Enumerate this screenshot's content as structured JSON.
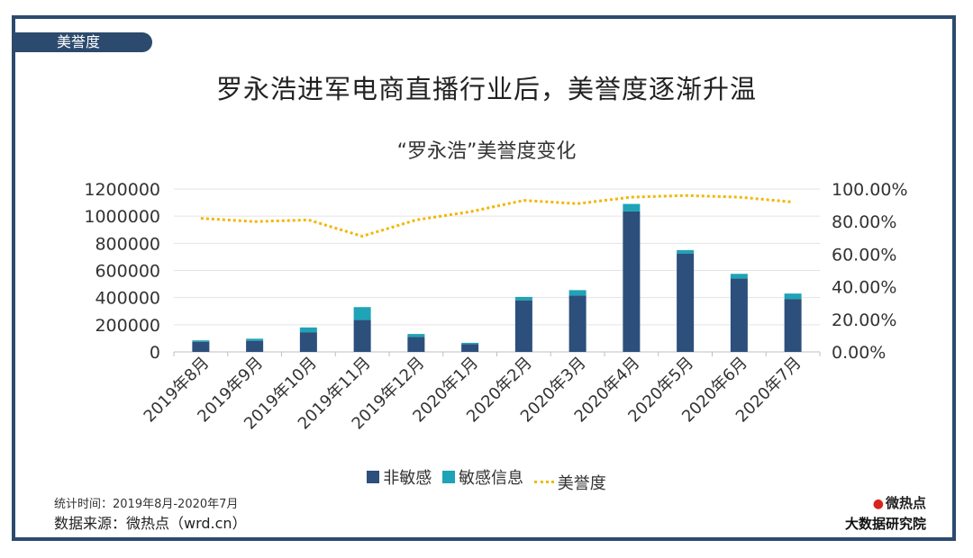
{
  "header": {
    "tag_label": "美誉度",
    "main_title": "罗永浩进军电商直播行业后，美誉度逐渐升温"
  },
  "footer": {
    "period": "统计时间：2019年8月-2020年7月",
    "source": "数据来源：微热点（wrd.cn）",
    "logo_line1": "微热点",
    "logo_line2": "大数据研究院"
  },
  "colors": {
    "non_sensitive": "#2c4f7c",
    "sensitive": "#1fa3b6",
    "reputation": "#f2b705",
    "frame": "#2c4a6e"
  },
  "chart_data": {
    "type": "bar",
    "title": "“罗永浩”美誉度变化",
    "stacked": true,
    "categories": [
      "2019年8月",
      "2019年9月",
      "2019年10月",
      "2019年11月",
      "2019年12月",
      "2020年1月",
      "2020年2月",
      "2020年3月",
      "2020年4月",
      "2020年5月",
      "2020年6月",
      "2020年7月"
    ],
    "series": [
      {
        "name": "非敏感",
        "type": "bar",
        "axis": "left",
        "values": [
          75000,
          82000,
          145000,
          235000,
          110000,
          57000,
          380000,
          415000,
          1035000,
          725000,
          540000,
          390000
        ]
      },
      {
        "name": "敏感信息",
        "type": "bar",
        "axis": "left",
        "values": [
          10000,
          15000,
          35000,
          95000,
          22000,
          10000,
          25000,
          40000,
          55000,
          25000,
          35000,
          40000
        ]
      },
      {
        "name": "美誉度",
        "type": "line",
        "axis": "right",
        "values": [
          0.82,
          0.8,
          0.81,
          0.71,
          0.81,
          0.86,
          0.93,
          0.91,
          0.95,
          0.96,
          0.95,
          0.92
        ]
      }
    ],
    "ylim_left": [
      0,
      1200000
    ],
    "yticks_left": [
      "1200000",
      "1000000",
      "800000",
      "600000",
      "400000",
      "200000",
      "0"
    ],
    "ylim_right": [
      0,
      1.0
    ],
    "yticks_right": [
      "100.00%",
      "80.00%",
      "60.00%",
      "40.00%",
      "20.00%",
      "0.00%"
    ],
    "grid": true,
    "legend_position": "bottom"
  }
}
